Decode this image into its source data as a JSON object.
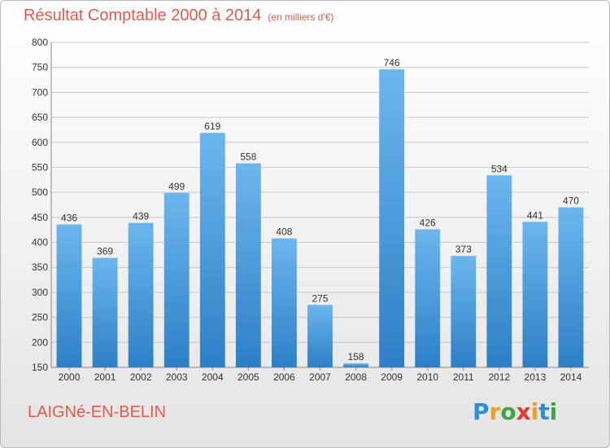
{
  "title": "Résultat Comptable 2000 à 2014",
  "subtitle": "(en milliers d'€)",
  "place": "LAIGNé-EN-BELIN",
  "logo": {
    "letters": [
      "P",
      "r",
      "o",
      "x",
      "i",
      "t",
      "i"
    ],
    "colors": [
      "#2a8fd8",
      "#f0a020",
      "#3aa845",
      "#e03a2a",
      "#f0a020",
      "#2a8fd8",
      "#3aa845"
    ]
  },
  "colors": {
    "bar_light": "#6cb6ee",
    "bar_dark": "#2d80c6",
    "grid": "#c8c8c8",
    "axis_text": "#333333"
  },
  "chart_data": {
    "type": "bar",
    "categories": [
      "2000",
      "2001",
      "2002",
      "2003",
      "2004",
      "2005",
      "2006",
      "2007",
      "2008",
      "2009",
      "2010",
      "2011",
      "2012",
      "2013",
      "2014"
    ],
    "values": [
      436,
      369,
      439,
      499,
      619,
      558,
      408,
      275,
      158,
      746,
      426,
      373,
      534,
      441,
      470
    ],
    "ylim": [
      150,
      800
    ],
    "yticks": [
      150,
      200,
      250,
      300,
      350,
      400,
      450,
      500,
      550,
      600,
      650,
      700,
      750,
      800
    ],
    "grid": true,
    "xlabel": "",
    "ylabel": ""
  }
}
